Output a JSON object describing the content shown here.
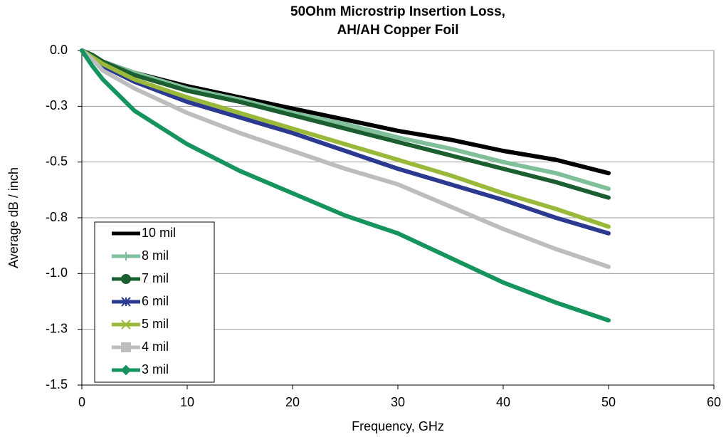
{
  "chart_data": {
    "type": "line",
    "title": [
      "50Ohm Microstrip Insertion Loss,",
      "AH/AH Copper Foil"
    ],
    "x_label": "Frequency, GHz",
    "y_label": "Average dB / inch",
    "x": [
      0,
      1,
      2,
      5,
      10,
      15,
      20,
      25,
      30,
      35,
      40,
      45,
      50
    ],
    "xlim": [
      0,
      60
    ],
    "xticks": [
      0,
      10,
      20,
      30,
      40,
      50,
      60
    ],
    "ylim": [
      -1.5,
      0
    ],
    "yticks": [
      {
        "value": 0,
        "label": "0.0"
      },
      {
        "value": -0.25,
        "label": "-0.3"
      },
      {
        "value": -0.5,
        "label": "-0.5"
      },
      {
        "value": -0.75,
        "label": "-0.8"
      },
      {
        "value": -1.0,
        "label": "-1.0"
      },
      {
        "value": -1.25,
        "label": "-1.3"
      },
      {
        "value": -1.5,
        "label": "-1.5"
      }
    ],
    "grid": true,
    "legend": "lower left",
    "series": [
      {
        "name": "10 mil",
        "color": "#000000",
        "marker": "none",
        "values": [
          0,
          -0.02,
          -0.05,
          -0.1,
          -0.16,
          -0.21,
          -0.26,
          -0.31,
          -0.36,
          -0.4,
          -0.45,
          -0.49,
          -0.55
        ]
      },
      {
        "name": "8 mil",
        "color": "#7fbf9a",
        "marker": "plus",
        "values": [
          0,
          -0.02,
          -0.05,
          -0.1,
          -0.17,
          -0.22,
          -0.28,
          -0.33,
          -0.39,
          -0.44,
          -0.5,
          -0.55,
          -0.62
        ]
      },
      {
        "name": "7 mil",
        "color": "#1b5e30",
        "marker": "circle",
        "values": [
          0,
          -0.02,
          -0.05,
          -0.11,
          -0.18,
          -0.23,
          -0.29,
          -0.35,
          -0.41,
          -0.47,
          -0.53,
          -0.59,
          -0.66
        ]
      },
      {
        "name": "6 mil",
        "color": "#2b3990",
        "marker": "star",
        "values": [
          0,
          -0.03,
          -0.07,
          -0.14,
          -0.23,
          -0.3,
          -0.37,
          -0.45,
          -0.53,
          -0.6,
          -0.67,
          -0.75,
          -0.82
        ]
      },
      {
        "name": "5 mil",
        "color": "#9ab93a",
        "marker": "cross",
        "values": [
          0,
          -0.03,
          -0.06,
          -0.13,
          -0.21,
          -0.28,
          -0.35,
          -0.42,
          -0.49,
          -0.56,
          -0.64,
          -0.71,
          -0.79
        ]
      },
      {
        "name": "4 mil",
        "color": "#bdbdbd",
        "marker": "square",
        "values": [
          0,
          -0.04,
          -0.09,
          -0.17,
          -0.28,
          -0.37,
          -0.45,
          -0.53,
          -0.6,
          -0.7,
          -0.8,
          -0.89,
          -0.97
        ]
      },
      {
        "name": "3 mil",
        "color": "#16945e",
        "marker": "diamond",
        "values": [
          0,
          -0.07,
          -0.13,
          -0.27,
          -0.42,
          -0.54,
          -0.64,
          -0.74,
          -0.82,
          -0.93,
          -1.04,
          -1.13,
          -1.21
        ]
      }
    ]
  }
}
